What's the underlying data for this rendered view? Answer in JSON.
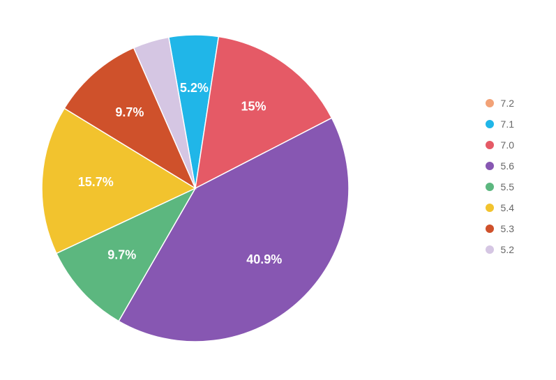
{
  "chart": {
    "type": "pie",
    "background_color": "#ffffff",
    "slice_border_color": "#ffffff",
    "slice_border_width": 1.5,
    "start_angle_deg": -10,
    "pie_radius": 220,
    "label_radius_ratio": 0.65,
    "label_fontsize": 18,
    "label_fontweight": 700,
    "label_color": "#ffffff",
    "legend": {
      "position": "right",
      "swatch_shape": "circle",
      "swatch_size": 12,
      "label_color": "#666666",
      "label_fontsize": 14,
      "item_spacing": 14,
      "items": [
        {
          "label": "7.2",
          "color": "#f2a277"
        },
        {
          "label": "7.1",
          "color": "#20b6e8"
        },
        {
          "label": "7.0",
          "color": "#e55a66"
        },
        {
          "label": "5.6",
          "color": "#8757b2"
        },
        {
          "label": "5.5",
          "color": "#5cb77f"
        },
        {
          "label": "5.4",
          "color": "#f2c32e"
        },
        {
          "label": "5.3",
          "color": "#cf512b"
        },
        {
          "label": "5.2",
          "color": "#d5c6e3"
        }
      ]
    },
    "slices": [
      {
        "name": "7.2",
        "value": 0.0,
        "label": "",
        "color": "#f2a277",
        "show_label": false
      },
      {
        "name": "7.1",
        "value": 5.2,
        "label": "5.2%",
        "color": "#20b6e8",
        "show_label": true
      },
      {
        "name": "7.0",
        "value": 15.0,
        "label": "15%",
        "color": "#e55a66",
        "show_label": true
      },
      {
        "name": "5.6",
        "value": 40.9,
        "label": "40.9%",
        "color": "#8757b2",
        "show_label": true
      },
      {
        "name": "5.5",
        "value": 9.7,
        "label": "9.7%",
        "color": "#5cb77f",
        "show_label": true
      },
      {
        "name": "5.4",
        "value": 15.7,
        "label": "15.7%",
        "color": "#f2c32e",
        "show_label": true
      },
      {
        "name": "5.3",
        "value": 9.7,
        "label": "9.7%",
        "color": "#cf512b",
        "show_label": true
      },
      {
        "name": "5.2",
        "value": 3.8,
        "label": "",
        "color": "#d5c6e3",
        "show_label": false
      }
    ]
  }
}
